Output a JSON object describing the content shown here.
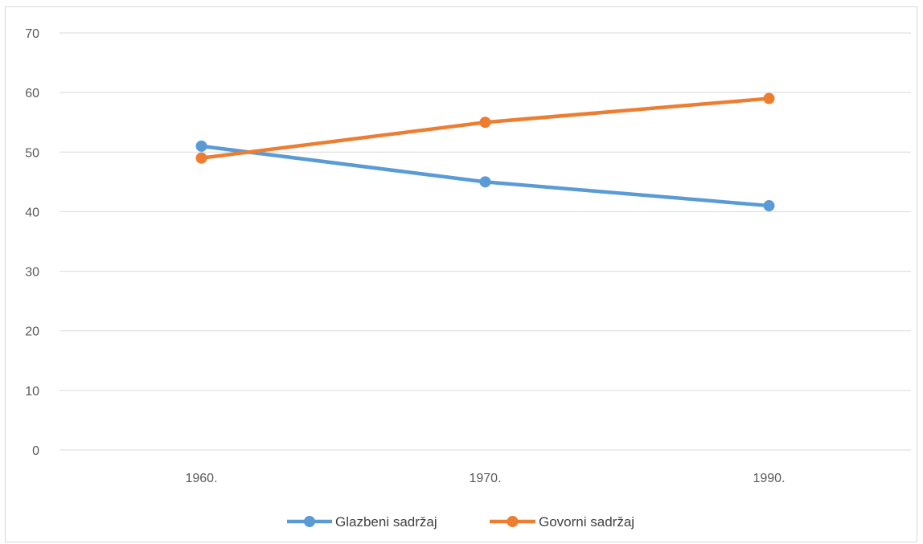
{
  "chart_data": {
    "type": "line",
    "categories": [
      "1960.",
      "1970.",
      "1990."
    ],
    "series": [
      {
        "name": "Glazbeni sadržaj",
        "color": "#5b9bd5",
        "values": [
          51,
          45,
          41
        ]
      },
      {
        "name": "Govorni sadržaj",
        "color": "#ed7d31",
        "values": [
          49,
          55,
          59
        ]
      }
    ],
    "ylim": [
      0,
      70
    ],
    "yticks": [
      0,
      10,
      20,
      30,
      40,
      50,
      60,
      70
    ],
    "grid": true,
    "legend_position": "bottom",
    "title": "",
    "xlabel": "",
    "ylabel": ""
  }
}
